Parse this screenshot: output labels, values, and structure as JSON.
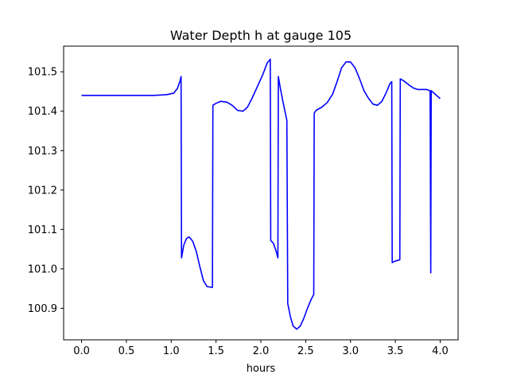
{
  "chart_data": {
    "type": "line",
    "title": "Water Depth h at gauge 105",
    "xlabel": "hours",
    "ylabel": "",
    "xlim": [
      -0.2,
      4.2
    ],
    "ylim": [
      100.82,
      101.565
    ],
    "xticks": [
      0.0,
      0.5,
      1.0,
      1.5,
      2.0,
      2.5,
      3.0,
      3.5,
      4.0
    ],
    "xtick_labels": [
      "0.0",
      "0.5",
      "1.0",
      "1.5",
      "2.0",
      "2.5",
      "3.0",
      "3.5",
      "4.0"
    ],
    "yticks": [
      100.9,
      101.0,
      101.1,
      101.2,
      101.3,
      101.4,
      101.5
    ],
    "ytick_labels": [
      "100.9",
      "101.0",
      "101.1",
      "101.2",
      "101.3",
      "101.4",
      "101.5"
    ],
    "grid": false,
    "series": [
      {
        "color": "#0000ff",
        "points": [
          [
            0.0,
            101.44
          ],
          [
            0.5,
            101.44
          ],
          [
            0.8,
            101.44
          ],
          [
            0.95,
            101.442
          ],
          [
            1.03,
            101.446
          ],
          [
            1.07,
            101.458
          ],
          [
            1.1,
            101.478
          ],
          [
            1.11,
            101.488
          ],
          [
            1.115,
            101.028
          ],
          [
            1.14,
            101.06
          ],
          [
            1.17,
            101.077
          ],
          [
            1.2,
            101.081
          ],
          [
            1.24,
            101.07
          ],
          [
            1.28,
            101.044
          ],
          [
            1.32,
            101.005
          ],
          [
            1.36,
            100.97
          ],
          [
            1.4,
            100.955
          ],
          [
            1.46,
            100.953
          ],
          [
            1.465,
            101.415
          ],
          [
            1.5,
            101.42
          ],
          [
            1.55,
            101.425
          ],
          [
            1.62,
            101.423
          ],
          [
            1.68,
            101.415
          ],
          [
            1.74,
            101.402
          ],
          [
            1.8,
            101.4
          ],
          [
            1.85,
            101.41
          ],
          [
            1.9,
            101.432
          ],
          [
            1.96,
            101.462
          ],
          [
            2.02,
            101.492
          ],
          [
            2.07,
            101.522
          ],
          [
            2.105,
            101.532
          ],
          [
            2.11,
            101.072
          ],
          [
            2.14,
            101.065
          ],
          [
            2.17,
            101.045
          ],
          [
            2.19,
            101.028
          ],
          [
            2.195,
            101.488
          ],
          [
            2.22,
            101.455
          ],
          [
            2.25,
            101.42
          ],
          [
            2.29,
            101.377
          ],
          [
            2.3,
            100.912
          ],
          [
            2.33,
            100.878
          ],
          [
            2.36,
            100.855
          ],
          [
            2.4,
            100.847
          ],
          [
            2.44,
            100.855
          ],
          [
            2.48,
            100.875
          ],
          [
            2.52,
            100.9
          ],
          [
            2.56,
            100.922
          ],
          [
            2.59,
            100.935
          ],
          [
            2.595,
            101.395
          ],
          [
            2.62,
            101.403
          ],
          [
            2.68,
            101.41
          ],
          [
            2.74,
            101.422
          ],
          [
            2.8,
            101.443
          ],
          [
            2.85,
            101.475
          ],
          [
            2.9,
            101.51
          ],
          [
            2.95,
            101.525
          ],
          [
            3.0,
            101.525
          ],
          [
            3.05,
            101.51
          ],
          [
            3.1,
            101.483
          ],
          [
            3.15,
            101.452
          ],
          [
            3.2,
            101.433
          ],
          [
            3.25,
            101.418
          ],
          [
            3.3,
            101.415
          ],
          [
            3.35,
            101.425
          ],
          [
            3.4,
            101.448
          ],
          [
            3.44,
            101.47
          ],
          [
            3.46,
            101.475
          ],
          [
            3.465,
            101.016
          ],
          [
            3.5,
            101.02
          ],
          [
            3.55,
            101.023
          ],
          [
            3.555,
            101.482
          ],
          [
            3.6,
            101.476
          ],
          [
            3.65,
            101.467
          ],
          [
            3.7,
            101.459
          ],
          [
            3.75,
            101.455
          ],
          [
            3.8,
            101.455
          ],
          [
            3.85,
            101.455
          ],
          [
            3.885,
            101.452
          ],
          [
            3.888,
            101.452
          ],
          [
            3.895,
            100.99
          ],
          [
            3.9,
            101.452
          ],
          [
            3.95,
            101.442
          ],
          [
            4.0,
            101.432
          ]
        ]
      }
    ]
  }
}
